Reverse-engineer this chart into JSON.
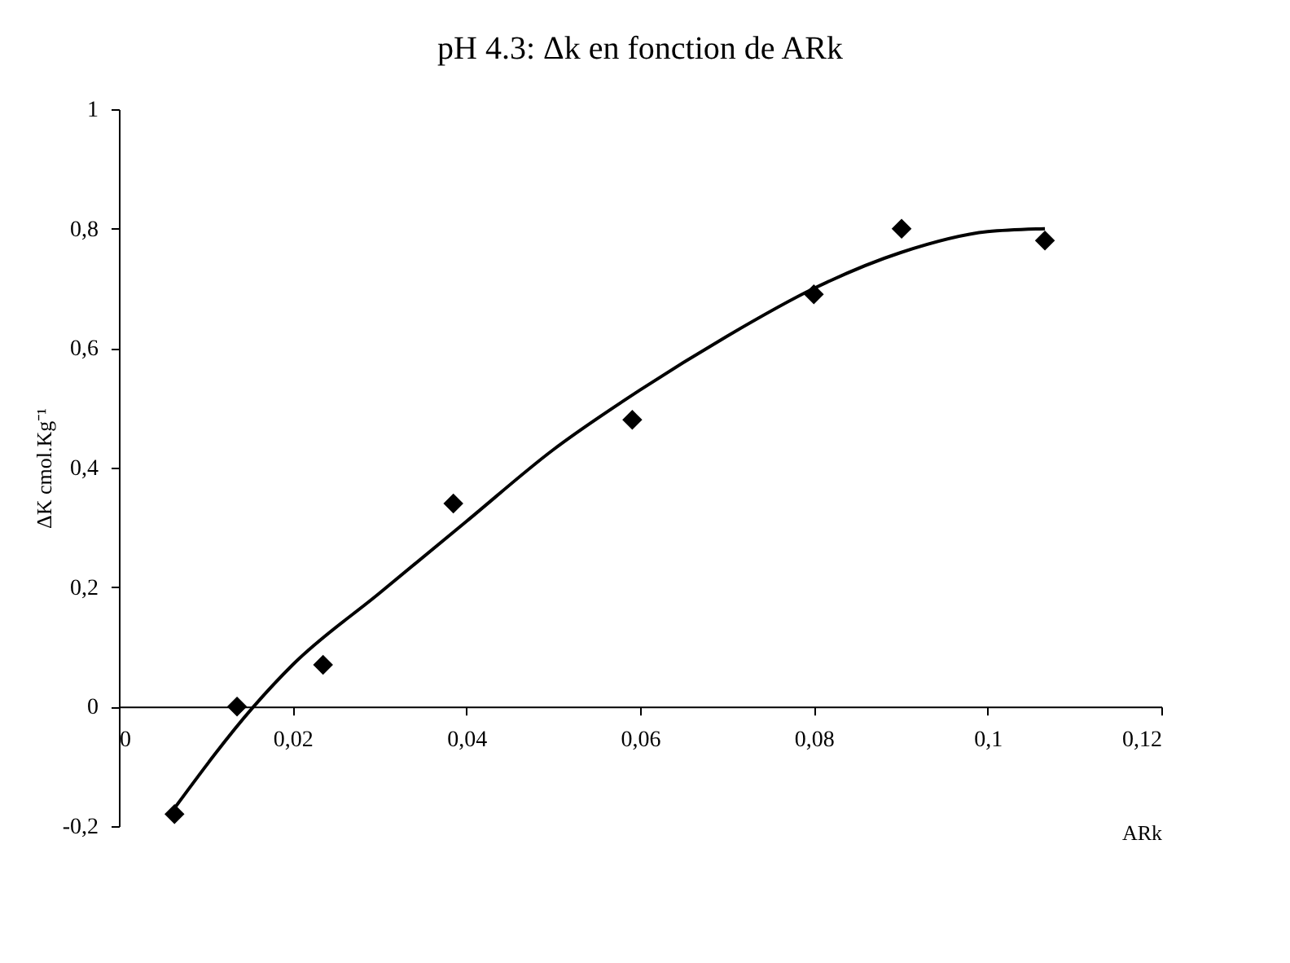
{
  "chart_data": {
    "type": "scatter",
    "title": "pH 4.3: Δk en fonction de ARk",
    "xlabel": "ARk",
    "ylabel": "ΔK cmol.Kg⁻¹",
    "xlim": [
      0,
      0.12
    ],
    "ylim": [
      -0.2,
      1
    ],
    "xticks": [
      0,
      {
        "value": 0.02,
        "label": "0,02"
      },
      {
        "value": 0.04,
        "label": "0,04"
      },
      {
        "value": 0.06,
        "label": "0,06"
      },
      {
        "value": 0.08,
        "label": "0,08"
      },
      {
        "value": 0.1,
        "label": "0,1"
      },
      {
        "value": 0.12,
        "label": "0,12"
      }
    ],
    "yticks": [
      {
        "value": -0.2,
        "label": "-0,2"
      },
      0,
      {
        "value": 0.2,
        "label": "0,2"
      },
      {
        "value": 0.4,
        "label": "0,4"
      },
      {
        "value": 0.6,
        "label": "0,6"
      },
      {
        "value": 0.8,
        "label": "0,8"
      },
      1
    ],
    "grid": false,
    "series": [
      {
        "marker": "diamond",
        "color": "#000000",
        "x": [
          0.0064,
          0.0136,
          0.0235,
          0.0385,
          0.0591,
          0.08,
          0.0901,
          0.1066
        ],
        "values": [
          -0.18,
          0,
          0.07,
          0.34,
          0.48,
          0.69,
          0.8,
          0.78
        ]
      },
      {
        "type": "line",
        "marker": "none",
        "line_style": "solid",
        "color": "#000000",
        "x": [
          0.0064,
          0.0155,
          0.02,
          0.03,
          0.04,
          0.05,
          0.06,
          0.07,
          0.08,
          0.09,
          0.1,
          0.1066
        ],
        "values": [
          -0.17,
          0,
          0.07,
          0.19,
          0.31,
          0.43,
          0.53,
          0.62,
          0.7,
          0.76,
          0.795,
          0.8
        ]
      }
    ]
  }
}
